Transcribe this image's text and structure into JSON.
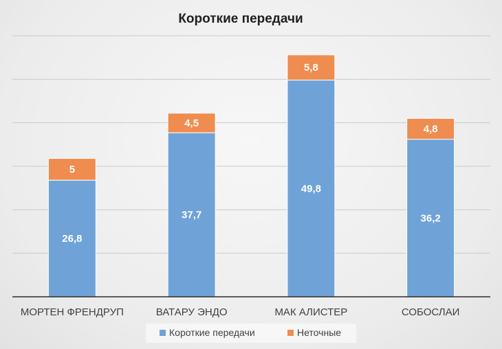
{
  "chart_data": {
    "type": "bar",
    "stacked": true,
    "title": "Короткие передачи",
    "categories": [
      "МОРТЕН ФРЕНДРУП",
      "ВАТАРУ ЭНДО",
      "МАК АЛИСТЕР",
      "СОБОСЛАИ"
    ],
    "series": [
      {
        "name": "Короткие передачи",
        "values": [
          26.8,
          37.7,
          49.8,
          36.2
        ],
        "labels": [
          "26,8",
          "37,7",
          "49,8",
          "36,2"
        ],
        "color": "#6fa3d7"
      },
      {
        "name": "Неточные",
        "values": [
          5,
          4.5,
          5.8,
          4.8
        ],
        "labels": [
          "5",
          "4,5",
          "5,8",
          "4,8"
        ],
        "color": "#ef8c4f"
      }
    ],
    "ylim": [
      0,
      60
    ],
    "grid": true,
    "legend_position": "bottom",
    "xlabel": "",
    "ylabel": ""
  }
}
